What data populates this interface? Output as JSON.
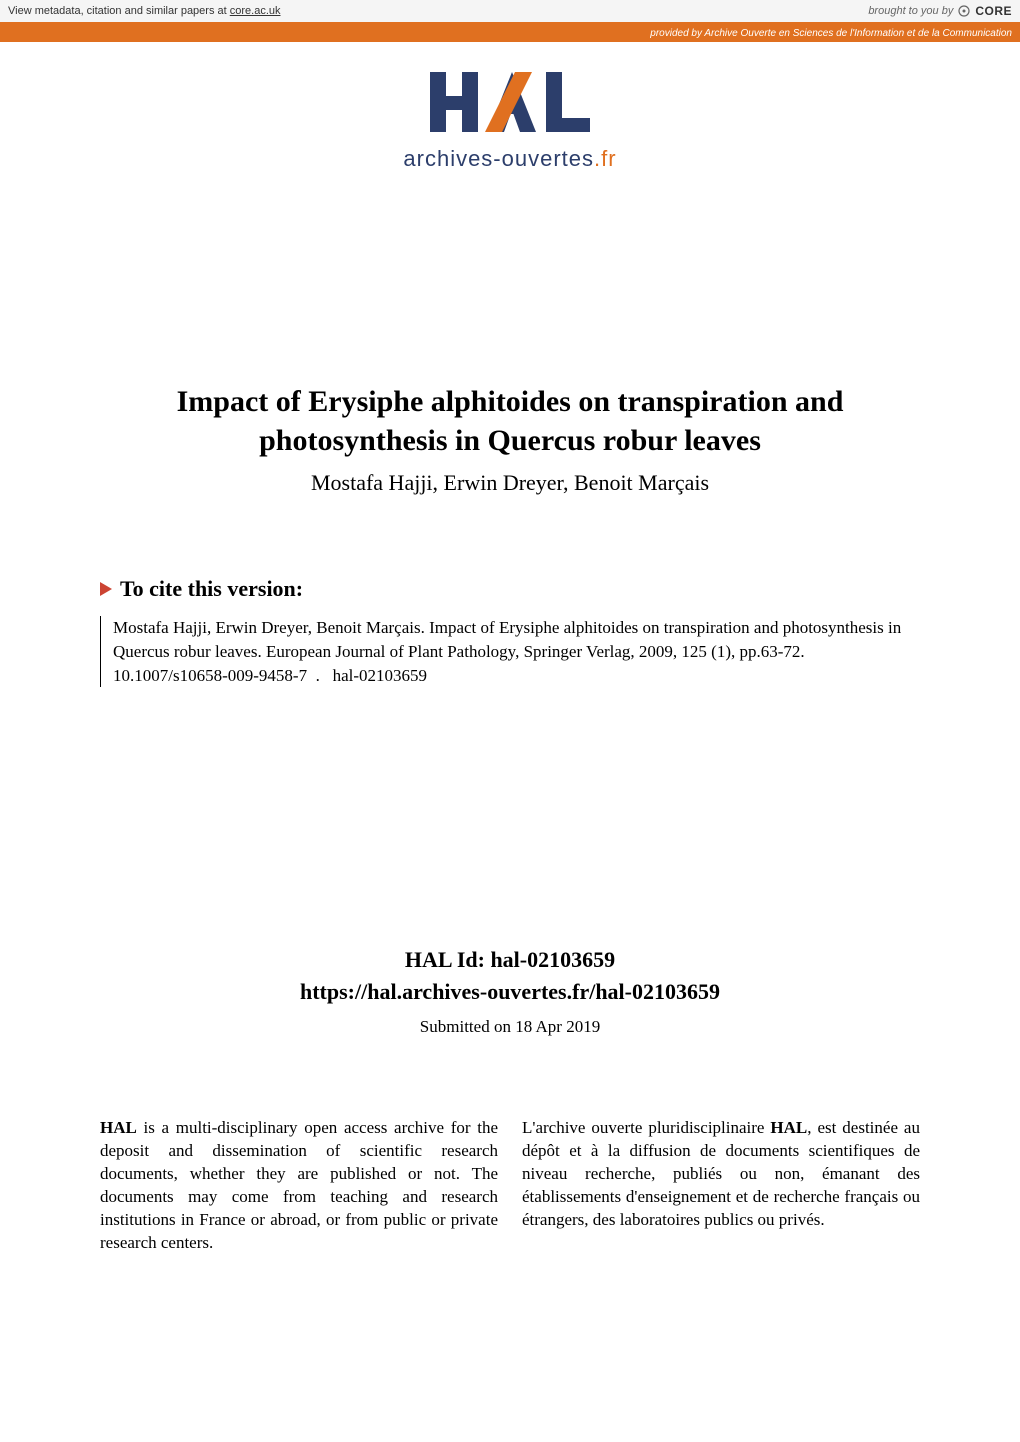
{
  "colors": {
    "banner_accent": "#e07020",
    "banner_bg": "#f5f5f5",
    "text": "#000000",
    "hal_navy": "#2c3e6b",
    "hal_orange": "#e07020",
    "cite_triangle": "#cc4433",
    "white": "#ffffff"
  },
  "core_banner": {
    "left_prefix": "View metadata, citation and similar papers at ",
    "left_link": "core.ac.uk",
    "brought_by": "brought to you by",
    "core_label": "CORE",
    "provided_by": "provided by Archive Ouverte en Sciences de l'Information et de la Communication"
  },
  "hal_logo": {
    "text": "archives-ouvertes",
    "tld": ".fr"
  },
  "paper": {
    "title_line1": "Impact of Erysiphe alphitoides on transpiration and",
    "title_line2": "photosynthesis in Quercus robur leaves",
    "authors": "Mostafa Hajji, Erwin Dreyer, Benoit Marçais"
  },
  "cite": {
    "heading": "To cite this version:",
    "text": "Mostafa Hajji, Erwin Dreyer, Benoit Marçais. Impact of Erysiphe alphitoides on transpiration and photosynthesis in Quercus robur leaves. European Journal of Plant Pathology, Springer Verlag, 2009, 125 (1), pp.63-72.  10.1007/s10658-009-9458-7 .  hal-02103659 "
  },
  "hal_id": {
    "label": "HAL Id: hal-02103659",
    "url": "https://hal.archives-ouvertes.fr/hal-02103659",
    "submitted": "Submitted on 18 Apr 2019"
  },
  "description": {
    "en_html": "<strong>HAL</strong> is a multi-disciplinary open access archive for the deposit and dissemination of scientific research documents, whether they are published or not. The documents may come from teaching and research institutions in France or abroad, or from public or private research centers.",
    "fr_html": "L'archive ouverte pluridisciplinaire <strong>HAL</strong>, est destinée au dépôt et à la diffusion de documents scientifiques de niveau recherche, publiés ou non, émanant des établissements d'enseignement et de recherche français ou étrangers, des laboratoires publics ou privés."
  },
  "typography": {
    "title_fontsize": 30,
    "authors_fontsize": 22,
    "cite_heading_fontsize": 22,
    "cite_body_fontsize": 17,
    "halid_fontsize": 22,
    "submitted_fontsize": 17,
    "description_fontsize": 17,
    "font_family": "Georgia / Times serif (Computer Modern style)"
  }
}
